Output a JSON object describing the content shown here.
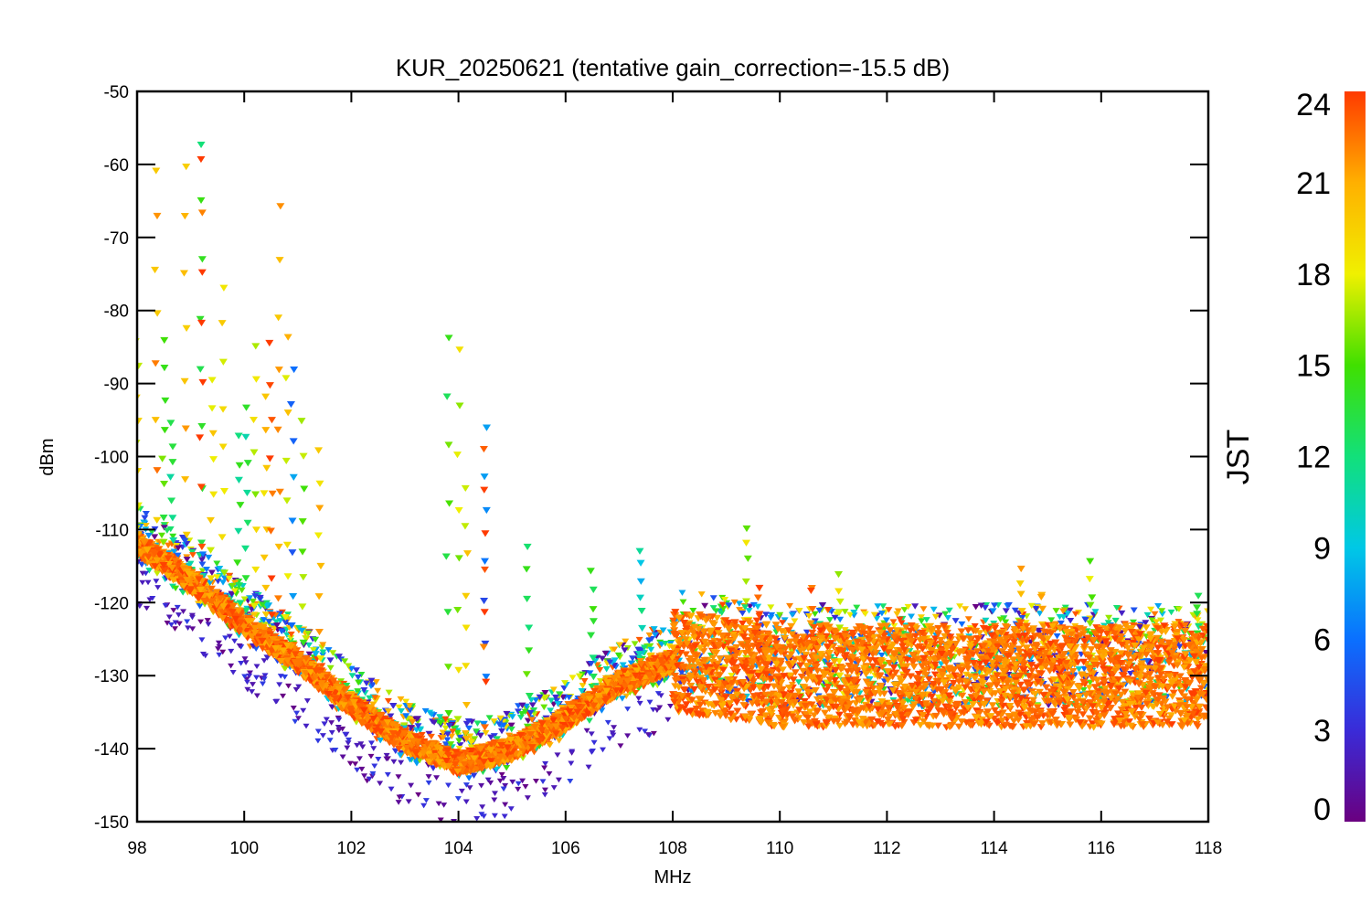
{
  "chart_data": {
    "type": "scatter",
    "title": "KUR_20250621 (tentative gain_correction=-15.5 dB)",
    "xlabel": "MHz",
    "ylabel": "dBm",
    "xlim": [
      98,
      118
    ],
    "ylim": [
      -150,
      -50
    ],
    "xticks": [
      98,
      100,
      102,
      104,
      106,
      108,
      110,
      112,
      114,
      116,
      118
    ],
    "yticks": [
      -50,
      -60,
      -70,
      -80,
      -90,
      -100,
      -110,
      -120,
      -130,
      -140,
      -150
    ],
    "grid": false,
    "marker": "asterisk",
    "colorbar": {
      "label": "JST",
      "range": [
        0,
        24
      ],
      "ticks": [
        0,
        3,
        6,
        9,
        12,
        15,
        18,
        21,
        24
      ],
      "colormap": "rainbow",
      "colors": [
        "#6a0080",
        "#3a2bd8",
        "#0a70ff",
        "#00c8e6",
        "#12e07a",
        "#40e000",
        "#f0f000",
        "#ffb000",
        "#ff3a00"
      ]
    },
    "noise_floor": {
      "x": [
        98,
        99,
        100,
        101,
        102,
        103,
        104,
        105,
        106,
        107,
        108,
        110,
        112,
        114,
        116,
        118
      ],
      "y": [
        -112,
        -117,
        -123,
        -128,
        -134,
        -139,
        -142,
        -140,
        -136,
        -131,
        -128,
        -130,
        -130,
        -130,
        -130,
        -130
      ]
    },
    "peaks": [
      {
        "x": 98.0,
        "top": -85,
        "jst": 18
      },
      {
        "x": 98.35,
        "top": -61,
        "jst": 21
      },
      {
        "x": 98.5,
        "top": -85,
        "jst": 15
      },
      {
        "x": 98.65,
        "top": -96,
        "jst": 12
      },
      {
        "x": 98.9,
        "top": -61,
        "jst": 20
      },
      {
        "x": 99.2,
        "top": -58,
        "jst": 14
      },
      {
        "x": 99.2,
        "top": -60,
        "jst": 24
      },
      {
        "x": 99.4,
        "top": -90,
        "jst": 18
      },
      {
        "x": 99.6,
        "top": -77,
        "jst": 18
      },
      {
        "x": 99.9,
        "top": -98,
        "jst": 13
      },
      {
        "x": 100.05,
        "top": -94,
        "jst": 12
      },
      {
        "x": 100.2,
        "top": -85,
        "jst": 18
      },
      {
        "x": 100.4,
        "top": -93,
        "jst": 19
      },
      {
        "x": 100.5,
        "top": -85,
        "jst": 23
      },
      {
        "x": 100.65,
        "top": -66,
        "jst": 21
      },
      {
        "x": 100.8,
        "top": -84,
        "jst": 19
      },
      {
        "x": 100.9,
        "top": -89,
        "jst": 6
      },
      {
        "x": 101.1,
        "top": -96,
        "jst": 16
      },
      {
        "x": 101.4,
        "top": -100,
        "jst": 20
      },
      {
        "x": 103.8,
        "top": -85,
        "jst": 14
      },
      {
        "x": 104.0,
        "top": -86,
        "jst": 17
      },
      {
        "x": 104.15,
        "top": -105,
        "jst": 19
      },
      {
        "x": 104.5,
        "top": -97,
        "jst": 6
      },
      {
        "x": 104.5,
        "top": -100,
        "jst": 24
      },
      {
        "x": 105.3,
        "top": -113,
        "jst": 14
      },
      {
        "x": 106.5,
        "top": -116,
        "jst": 14
      },
      {
        "x": 107.4,
        "top": -113,
        "jst": 10
      },
      {
        "x": 109.4,
        "top": -110,
        "jst": 17
      },
      {
        "x": 109.6,
        "top": -119,
        "jst": 24
      },
      {
        "x": 110.6,
        "top": -118,
        "jst": 23
      },
      {
        "x": 111.1,
        "top": -117,
        "jst": 18
      },
      {
        "x": 114.5,
        "top": -116,
        "jst": 21
      },
      {
        "x": 114.9,
        "top": -119,
        "jst": 21
      },
      {
        "x": 115.8,
        "top": -115,
        "jst": 16
      },
      {
        "x": 117.8,
        "top": -119,
        "jst": 13
      }
    ]
  }
}
